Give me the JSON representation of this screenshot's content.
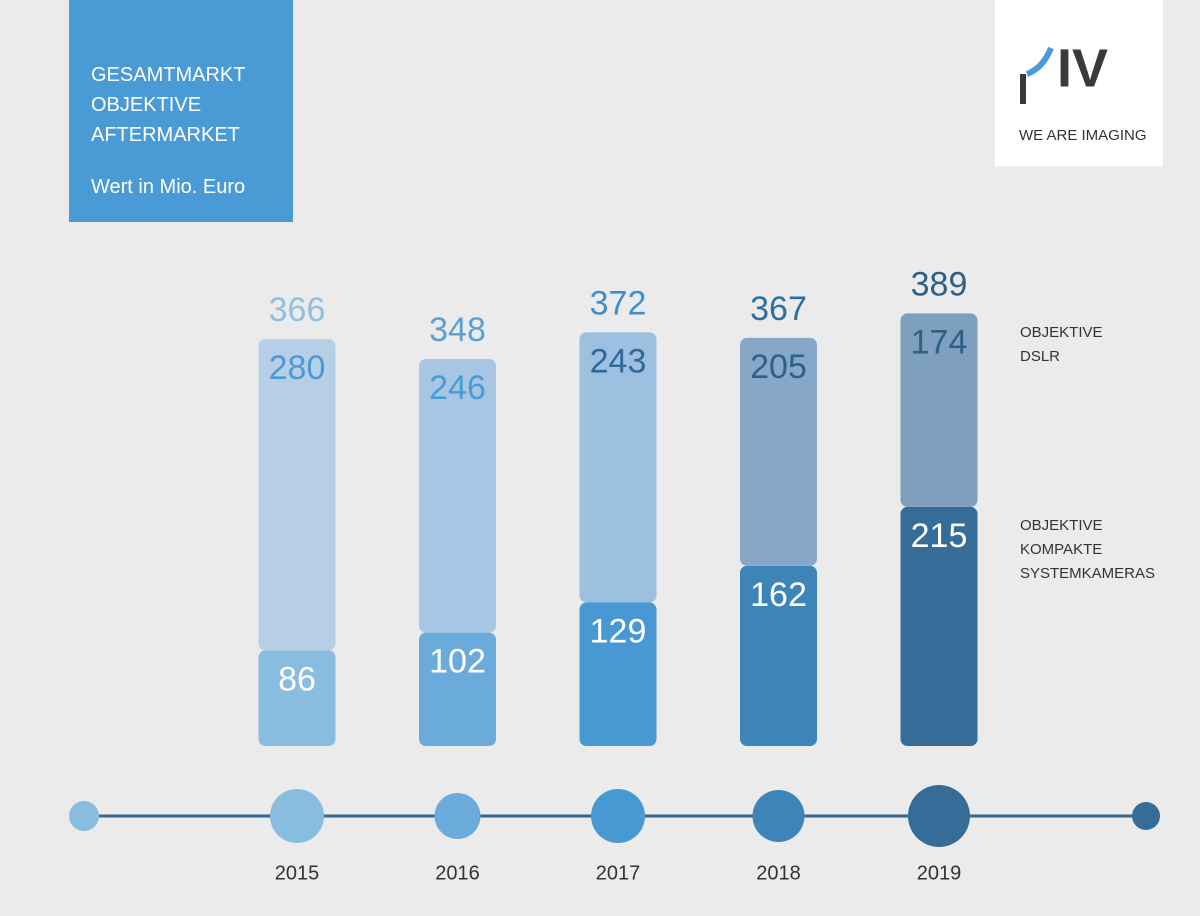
{
  "chart_data": {
    "type": "stacked-bar",
    "title": "GESAMTMARKT OBJEKTIVE AFTERMARKET",
    "subtitle": "Wert in Mio. Euro",
    "categories": [
      "2015",
      "2016",
      "2017",
      "2018",
      "2019"
    ],
    "series": [
      {
        "name": "OBJEKTIVE KOMPAKTE SYSTEMKAMERAS",
        "values": [
          86,
          102,
          129,
          162,
          215
        ],
        "colors": [
          "#89bde0",
          "#6aabdb",
          "#4898d3",
          "#3d84b8",
          "#356d98"
        ],
        "label_colors": [
          "#ffffff",
          "#ffffff",
          "#ffffff",
          "#ffffff",
          "#ffffff"
        ]
      },
      {
        "name": "OBJEKTIVE DSLR",
        "values": [
          280,
          246,
          243,
          205,
          174
        ],
        "colors": [
          "#b7cfe6",
          "#a7c6e4",
          "#9dbfe0",
          "#86a7c8",
          "#7f9fbe"
        ],
        "label_colors": [
          "#4a9ad6",
          "#4a9ad6",
          "#2e6a99",
          "#2e5f86",
          "#2e5f86"
        ]
      }
    ],
    "totals": [
      366,
      348,
      372,
      367,
      389
    ],
    "total_colors": [
      "#8fc0e0",
      "#5aa0d5",
      "#3f8fce",
      "#2f6f9f",
      "#2e5f86"
    ]
  },
  "brand": {
    "mark": "IV",
    "tagline": "WE ARE IMAGING"
  }
}
